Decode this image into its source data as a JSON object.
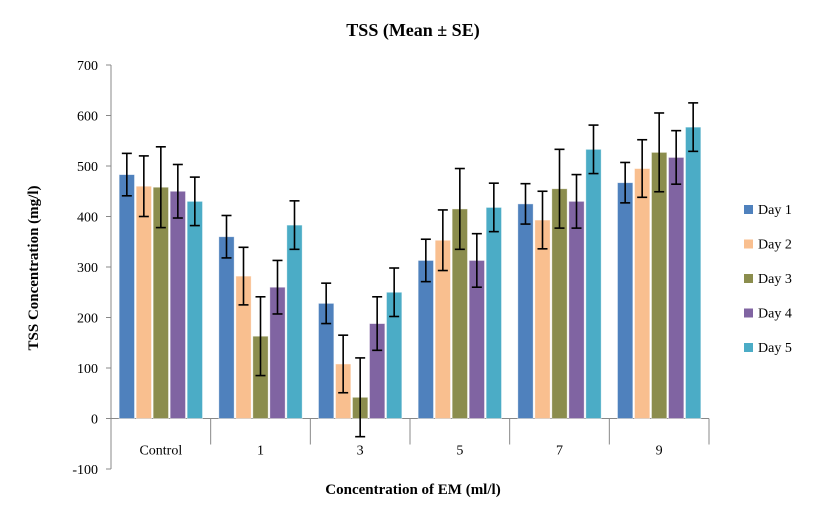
{
  "chart_data": {
    "type": "bar",
    "title": "TSS (Mean ± SE)",
    "xlabel": "Concentration of EM (ml/l)",
    "ylabel": "TSS Concentration (mg/l)",
    "categories": [
      "Control",
      "1",
      "3",
      "5",
      "7",
      "9"
    ],
    "ylim": [
      -100,
      700
    ],
    "yticks": [
      -100,
      0,
      100,
      200,
      300,
      400,
      500,
      600,
      700
    ],
    "legend_position": "right",
    "grid": false,
    "series": [
      {
        "name": "Day 1",
        "color": "#4f81bd",
        "values": [
          483,
          360,
          228,
          313,
          425,
          467
        ],
        "errors": [
          42,
          42,
          40,
          42,
          40,
          40
        ]
      },
      {
        "name": "Day 2",
        "color": "#f9bf8f",
        "values": [
          460,
          282,
          108,
          353,
          393,
          495
        ],
        "errors": [
          60,
          57,
          57,
          60,
          57,
          57
        ]
      },
      {
        "name": "Day 3",
        "color": "#8b8d4d",
        "values": [
          458,
          163,
          42,
          415,
          455,
          527
        ],
        "errors": [
          80,
          78,
          78,
          80,
          78,
          78
        ]
      },
      {
        "name": "Day 4",
        "color": "#8064a2",
        "values": [
          450,
          260,
          188,
          313,
          430,
          517
        ],
        "errors": [
          53,
          53,
          53,
          53,
          53,
          53
        ]
      },
      {
        "name": "Day 5",
        "color": "#4bacc6",
        "values": [
          430,
          383,
          250,
          418,
          533,
          577
        ],
        "errors": [
          48,
          48,
          48,
          48,
          48,
          48
        ]
      }
    ]
  }
}
